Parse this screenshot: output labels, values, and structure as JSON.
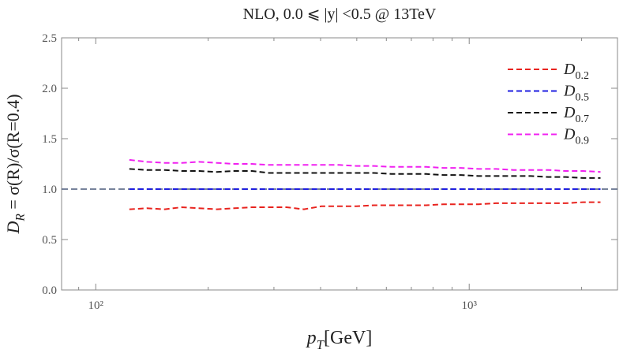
{
  "chart_data": {
    "type": "line",
    "title": "NLO, 0.0 ⩽ |y| <0.5 @ 13TeV",
    "xlabel": "pT[GeV]",
    "ylabel": "DR = σ(R)/σ(R=0.4)",
    "xlog": true,
    "xlim": [
      81,
      2495
    ],
    "xticks": [
      {
        "value": 100,
        "label": "10²"
      },
      {
        "value": 1000,
        "label": "10³"
      }
    ],
    "xticks_minor": [
      90,
      200,
      300,
      400,
      500,
      600,
      700,
      800,
      900,
      2000
    ],
    "ylim": [
      0,
      2.5
    ],
    "yticks": [
      {
        "value": 0,
        "label": "0.0"
      },
      0.5,
      {
        "value": 1,
        "label": "1.0"
      },
      1.5,
      {
        "value": 2,
        "label": "2.0"
      },
      2.5
    ],
    "reference_line": {
      "value": 1,
      "color": "#4a5a7a"
    },
    "legend": "upper right",
    "x": [
      123,
      137,
      153,
      170,
      189,
      211,
      235,
      262,
      291,
      324,
      361,
      402,
      448,
      499,
      556,
      619,
      689,
      767,
      854,
      951,
      1059,
      1179,
      1313,
      1462,
      1628,
      1812,
      2018,
      2247
    ],
    "series": [
      {
        "name": "D0.2",
        "color": "#e8231e",
        "values": [
          0.8,
          0.81,
          0.8,
          0.82,
          0.81,
          0.8,
          0.81,
          0.82,
          0.82,
          0.82,
          0.8,
          0.83,
          0.83,
          0.83,
          0.84,
          0.84,
          0.84,
          0.84,
          0.85,
          0.85,
          0.85,
          0.86,
          0.86,
          0.86,
          0.86,
          0.86,
          0.87,
          0.87
        ]
      },
      {
        "name": "D0.5",
        "color": "#1f1fe0",
        "values": [
          1.0,
          1.0,
          1.0,
          1.0,
          1.0,
          1.0,
          1.0,
          1.0,
          1.0,
          1.0,
          1.0,
          1.0,
          1.0,
          1.0,
          1.0,
          1.0,
          1.0,
          1.0,
          1.0,
          1.0,
          1.0,
          1.0,
          1.0,
          1.0,
          1.0,
          1.0,
          1.0,
          1.0
        ]
      },
      {
        "name": "D0.7",
        "color": "#111111",
        "values": [
          1.2,
          1.19,
          1.19,
          1.18,
          1.18,
          1.17,
          1.18,
          1.18,
          1.16,
          1.16,
          1.16,
          1.16,
          1.16,
          1.16,
          1.16,
          1.15,
          1.15,
          1.15,
          1.14,
          1.14,
          1.13,
          1.13,
          1.13,
          1.13,
          1.12,
          1.12,
          1.11,
          1.11
        ]
      },
      {
        "name": "D0.9",
        "color": "#f020f0",
        "values": [
          1.29,
          1.27,
          1.26,
          1.26,
          1.27,
          1.26,
          1.25,
          1.25,
          1.24,
          1.24,
          1.24,
          1.24,
          1.24,
          1.23,
          1.23,
          1.22,
          1.22,
          1.22,
          1.21,
          1.21,
          1.2,
          1.2,
          1.19,
          1.19,
          1.19,
          1.18,
          1.18,
          1.17
        ]
      }
    ]
  }
}
